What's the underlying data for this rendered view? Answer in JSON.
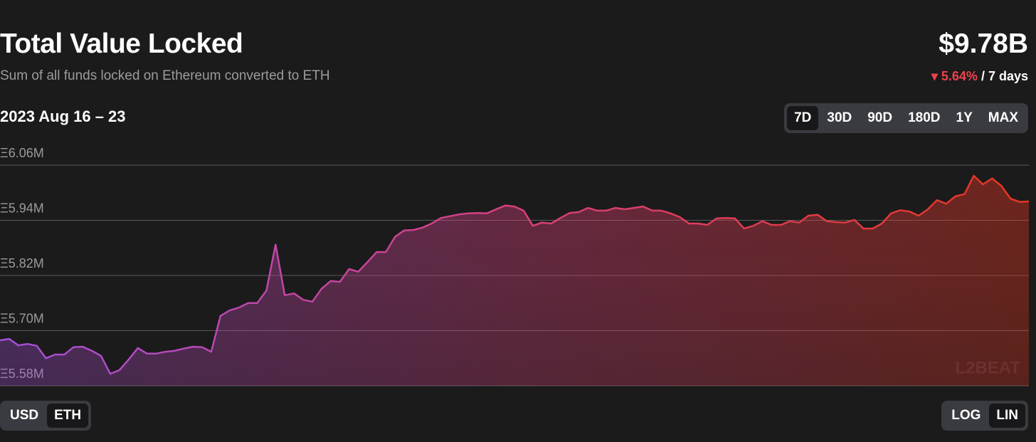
{
  "header": {
    "title": "Total Value Locked",
    "subtitle": "Sum of all funds locked on Ethereum converted to ETH",
    "total": "$9.78B",
    "change": "5.64%",
    "period": "/ 7 days",
    "date_range": "2023 Aug 16 – 23"
  },
  "controls": {
    "ranges": [
      "7D",
      "30D",
      "90D",
      "180D",
      "1Y",
      "MAX"
    ],
    "units": [
      "USD",
      "ETH"
    ],
    "scales": [
      "LOG",
      "LIN"
    ]
  },
  "chart_data": {
    "type": "area",
    "watermark": "L2BEAT",
    "values": [
      5.679,
      5.682,
      5.668,
      5.671,
      5.667,
      5.64,
      5.648,
      5.648,
      5.664,
      5.665,
      5.656,
      5.645,
      5.606,
      5.614,
      5.637,
      5.662,
      5.65,
      5.65,
      5.654,
      5.656,
      5.661,
      5.665,
      5.664,
      5.654,
      5.732,
      5.744,
      5.75,
      5.76,
      5.76,
      5.787,
      5.887,
      5.777,
      5.781,
      5.767,
      5.763,
      5.791,
      5.808,
      5.806,
      5.834,
      5.828,
      5.849,
      5.871,
      5.871,
      5.904,
      5.918,
      5.919,
      5.924,
      5.933,
      5.945,
      5.949,
      5.953,
      5.955,
      5.956,
      5.955,
      5.964,
      5.972,
      5.97,
      5.961,
      5.928,
      5.935,
      5.933,
      5.945,
      5.956,
      5.958,
      5.967,
      5.961,
      5.961,
      5.967,
      5.964,
      5.967,
      5.97,
      5.961,
      5.961,
      5.955,
      5.947,
      5.933,
      5.933,
      5.93,
      5.944,
      5.945,
      5.944,
      5.922,
      5.928,
      5.938,
      5.93,
      5.93,
      5.938,
      5.935,
      5.95,
      5.952,
      5.938,
      5.936,
      5.935,
      5.941,
      5.922,
      5.922,
      5.933,
      5.955,
      5.962,
      5.959,
      5.95,
      5.964,
      5.984,
      5.976,
      5.992,
      5.997,
      6.037,
      6.018,
      6.031,
      6.015,
      5.987,
      5.98,
      5.981
    ],
    "colors": [
      "#a44fd8",
      "#d8407e",
      "#e6361f"
    ],
    "ylim": [
      5.58,
      6.06
    ],
    "yticks": [
      {
        "value": 5.58,
        "label": "Ξ5.58M"
      },
      {
        "value": 5.7,
        "label": "Ξ5.70M"
      },
      {
        "value": 5.82,
        "label": "Ξ5.82M"
      },
      {
        "value": 5.94,
        "label": "Ξ5.94M"
      },
      {
        "value": 6.06,
        "label": "Ξ6.06M"
      }
    ],
    "grid": true
  }
}
